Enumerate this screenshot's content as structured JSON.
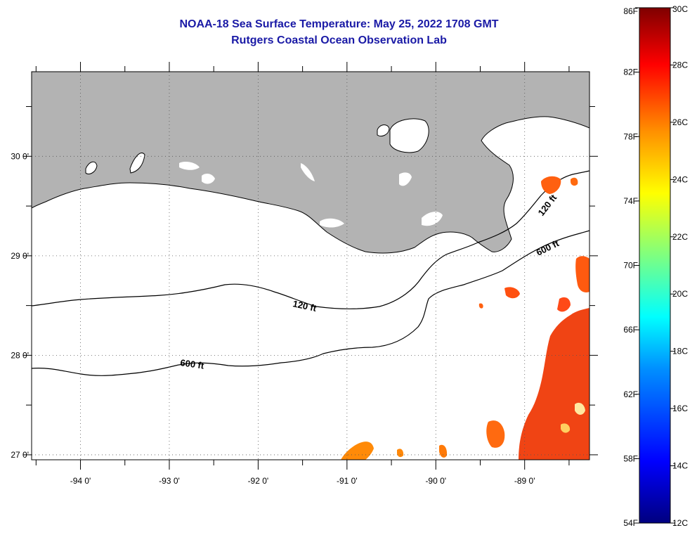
{
  "title": "NOAA-18 Sea Surface Temperature:  May 25, 2022 1708 GMT",
  "subtitle": "Rutgers Coastal Ocean Observation Lab",
  "map": {
    "lon_range": [
      -94.55,
      -88.27
    ],
    "lat_range": [
      26.95,
      30.85
    ],
    "lon_ticks": [
      {
        "value": -94,
        "label": "-94 0'"
      },
      {
        "value": -93,
        "label": "-93 0'"
      },
      {
        "value": -92,
        "label": "-92 0'"
      },
      {
        "value": -91,
        "label": "-91 0'"
      },
      {
        "value": -90,
        "label": "-90 0'"
      },
      {
        "value": -89,
        "label": "-89 0'"
      }
    ],
    "lat_ticks": [
      {
        "value": 30,
        "label": "30 0'"
      },
      {
        "value": 29,
        "label": "29 0'"
      },
      {
        "value": 28,
        "label": "28 0'"
      },
      {
        "value": 27,
        "label": "27 0'"
      }
    ],
    "land_color": "#b3b3b3",
    "contour_labels": [
      {
        "id": "c120-west",
        "text": "120 ft"
      },
      {
        "id": "c600-west",
        "text": "600 ft"
      },
      {
        "id": "c120-east",
        "text": "120 ft"
      },
      {
        "id": "c600-east",
        "text": "600 ft"
      }
    ]
  },
  "colorbar": {
    "fahrenheit_labels": [
      "86F",
      "82F",
      "78F",
      "74F",
      "70F",
      "66F",
      "62F",
      "58F",
      "54F"
    ],
    "celsius_labels": [
      "30C",
      "28C",
      "26C",
      "24C",
      "22C",
      "20C",
      "18C",
      "16C",
      "14C",
      "12C"
    ],
    "range_c": [
      12,
      30
    ],
    "colors": [
      "#00007f",
      "#0000ff",
      "#0090ff",
      "#00ffff",
      "#7fff7f",
      "#ffff00",
      "#ff9000",
      "#ff0000",
      "#7f0000"
    ]
  }
}
